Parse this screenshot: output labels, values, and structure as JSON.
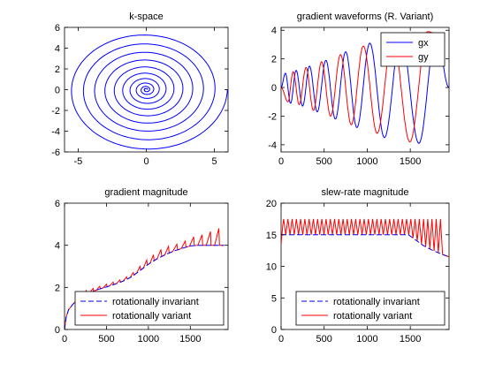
{
  "chart_data": [
    {
      "type": "line",
      "title": "k-space",
      "xlim": [
        -6,
        6
      ],
      "ylim": [
        -6,
        6
      ],
      "xticks": [
        -5,
        0,
        5
      ],
      "yticks": [
        -6,
        -4,
        -2,
        0,
        2,
        4,
        6
      ],
      "grid": false,
      "series": [
        {
          "color": "#0000ff",
          "shape": "archimedean spiral, 10 turns",
          "x": [
            0,
            0.1,
            0,
            -0.25,
            0,
            0.4,
            0,
            -0.55,
            0,
            0.71,
            0,
            -0.89,
            0,
            1.12,
            0,
            -1.41,
            0,
            1.77,
            0,
            -2.22,
            0,
            2.78,
            0,
            -3.48,
            0,
            4.36,
            0,
            -4.84,
            0,
            5.95
          ],
          "y": [
            0,
            0,
            0.18,
            0,
            -0.32,
            0,
            0.48,
            0,
            -0.63,
            0,
            0.8,
            0,
            -1.0,
            0,
            1.26,
            0,
            -1.58,
            0,
            1.98,
            0,
            -2.49,
            0,
            3.12,
            0,
            -3.91,
            0,
            4.83,
            0,
            -5.95,
            -0.5
          ]
        }
      ]
    },
    {
      "type": "line",
      "title": "gradient waveforms (R. Variant)",
      "xlim": [
        0,
        1950
      ],
      "ylim": [
        -4.5,
        4.2
      ],
      "xticks": [
        0,
        500,
        1000,
        1500
      ],
      "yticks": [
        -4,
        -2,
        0,
        2,
        4
      ],
      "grid": false,
      "legend": {
        "position": "top-right",
        "entries": [
          "gx",
          "gy"
        ]
      },
      "series": [
        {
          "name": "gx",
          "color": "#0000ff",
          "peaks_x": [
            0,
            50,
            110,
            175,
            250,
            330,
            420,
            520,
            630,
            750,
            880,
            1030,
            1200,
            1390,
            1600,
            1800,
            1950
          ],
          "peaks_y": [
            0,
            1.0,
            -1.1,
            1.2,
            -1.3,
            1.5,
            -1.7,
            1.9,
            -2.2,
            2.5,
            -2.8,
            3.1,
            -3.5,
            3.7,
            -3.9,
            3.8,
            0
          ]
        },
        {
          "name": "gy",
          "color": "#ff0000",
          "peaks_x": [
            0,
            80,
            140,
            210,
            290,
            375,
            470,
            575,
            690,
            815,
            955,
            1115,
            1295,
            1495,
            1700,
            1900
          ],
          "peaks_y": [
            0,
            -1.0,
            1.1,
            -1.2,
            1.4,
            -1.6,
            1.8,
            -2.0,
            2.3,
            -2.6,
            2.9,
            -3.2,
            3.6,
            -3.8,
            3.9,
            3.5
          ]
        }
      ]
    },
    {
      "type": "line",
      "title": "gradient magnitude",
      "xlim": [
        0,
        1950
      ],
      "ylim": [
        0,
        6
      ],
      "xticks": [
        0,
        500,
        1000,
        1500
      ],
      "yticks": [
        0,
        2,
        4,
        6
      ],
      "grid": false,
      "legend": {
        "position": "bottom-right",
        "entries": [
          "rotationally invariant",
          "rotationally variant"
        ]
      },
      "series": [
        {
          "name": "rotationally invariant",
          "color": "#0000ff",
          "style": "dashed",
          "x": [
            0,
            20,
            50,
            100,
            150,
            200,
            300,
            400,
            500,
            600,
            700,
            800,
            900,
            1000,
            1100,
            1200,
            1300,
            1400,
            1500,
            1600,
            1700,
            1800,
            1900
          ],
          "y": [
            0,
            0.6,
            0.95,
            1.2,
            1.4,
            1.55,
            1.75,
            1.9,
            2.02,
            2.15,
            2.3,
            2.5,
            2.8,
            3.1,
            3.35,
            3.55,
            3.72,
            3.85,
            3.97,
            4.0,
            4.0,
            4.0,
            4.0
          ]
        },
        {
          "name": "rotationally variant",
          "color": "#ff0000",
          "style": "solid",
          "ripple_peaks_x": [
            180,
            260,
            340,
            420,
            500,
            580,
            660,
            740,
            820,
            900,
            980,
            1060,
            1150,
            1240,
            1340,
            1440,
            1540,
            1640,
            1740,
            1840
          ],
          "ripple_peaks_y": [
            1.7,
            1.85,
            1.95,
            2.05,
            2.15,
            2.25,
            2.35,
            2.5,
            2.7,
            3.0,
            3.3,
            3.55,
            3.8,
            3.95,
            4.05,
            4.2,
            4.4,
            4.5,
            4.65,
            4.8
          ]
        }
      ]
    },
    {
      "type": "line",
      "title": "slew-rate magnitude",
      "xlim": [
        0,
        1950
      ],
      "ylim": [
        0,
        20
      ],
      "xticks": [
        0,
        500,
        1000,
        1500
      ],
      "yticks": [
        0,
        5,
        10,
        15,
        20
      ],
      "grid": false,
      "legend": {
        "position": "bottom-right",
        "entries": [
          "rotationally invariant",
          "rotationally variant"
        ]
      },
      "series": [
        {
          "name": "rotationally invariant",
          "color": "#0000ff",
          "style": "dashed",
          "x": [
            0,
            1480,
            1560,
            1650,
            1750,
            1850,
            1950
          ],
          "y": [
            15,
            15,
            14.2,
            13.3,
            12.6,
            12.0,
            11.5
          ]
        },
        {
          "name": "rotationally variant",
          "color": "#ff0000",
          "style": "solid",
          "oscillation_high": 17.5,
          "oscillation_low": 15.0,
          "oscillation_count": 38,
          "tail_low": [
            [
              1480,
              15
            ],
            [
              1560,
              14.2
            ],
            [
              1650,
              13.3
            ],
            [
              1750,
              12.6
            ],
            [
              1850,
              12.0
            ],
            [
              1950,
              11.5
            ]
          ]
        }
      ]
    }
  ]
}
